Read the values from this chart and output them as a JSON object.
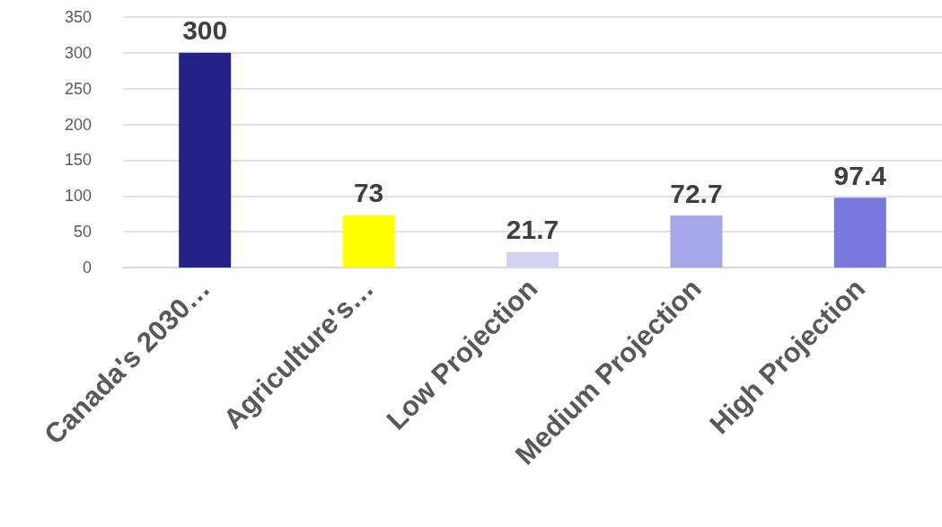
{
  "chart_data": {
    "type": "bar",
    "categories": [
      "Canada's 2030…",
      "Agriculture's…",
      "Low Projection",
      "Medium Projection",
      "High Projection"
    ],
    "values": [
      300,
      73,
      21.7,
      72.7,
      97.4
    ],
    "colors": [
      "#212186",
      "#ffff00",
      "#d2d2f2",
      "#a5a5e8",
      "#7878de"
    ],
    "ylim": [
      0,
      350
    ],
    "yticks": [
      0,
      50,
      100,
      150,
      200,
      250,
      300,
      350
    ],
    "grid": "y",
    "data_labels": true
  }
}
